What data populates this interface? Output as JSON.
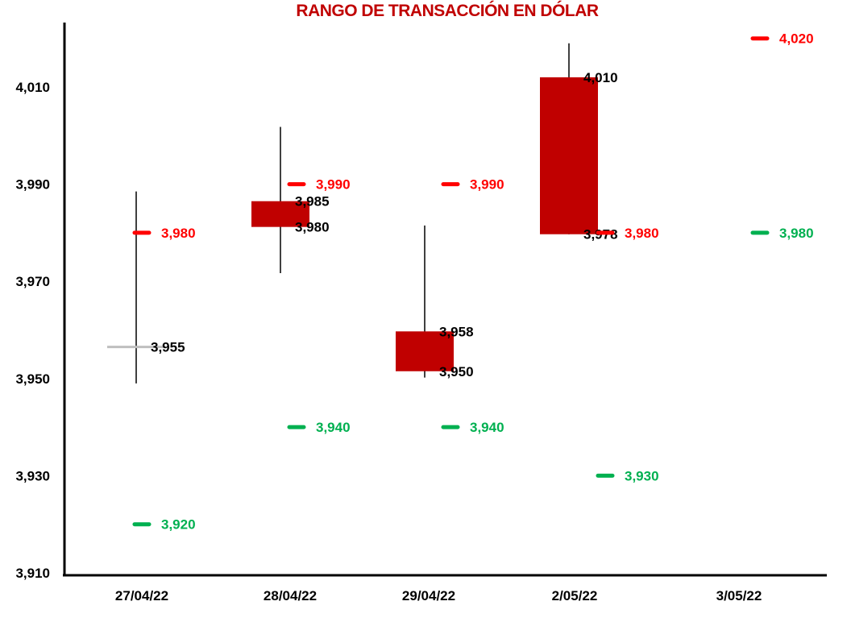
{
  "chart_data": {
    "type": "candlestick",
    "title": "RANGO DE TRANSACCIÓN EN DÓLAR",
    "xlabel": "",
    "ylabel": "",
    "ylim": [
      3910,
      4023
    ],
    "yticks": [
      3910,
      3930,
      3950,
      3970,
      3990,
      4010
    ],
    "ytick_labels": [
      "3,910",
      "3,930",
      "3,950",
      "3,970",
      "3,990",
      "4,010"
    ],
    "categories": [
      "27/04/22",
      "28/04/22",
      "29/04/22",
      "2/05/22",
      "3/05/22"
    ],
    "grid": false,
    "candles": [
      {
        "date": "27/04/22",
        "open": 3956.5,
        "close": 3956.5,
        "high": 3988.5,
        "low": 3949,
        "labels": [
          "3,955"
        ]
      },
      {
        "date": "28/04/22",
        "open": 3981.2,
        "close": 3986.5,
        "high": 4001.8,
        "low": 3971.7,
        "labels": [
          "3,985",
          "3,980"
        ]
      },
      {
        "date": "29/04/22",
        "open": 3951.5,
        "close": 3959.7,
        "high": 3981.5,
        "low": 3950.2,
        "labels": [
          "3,958",
          "3,950"
        ]
      },
      {
        "date": "2/05/22",
        "open": 3979.7,
        "close": 4012,
        "high": 4019,
        "low": 3979.7,
        "labels": [
          "4,010",
          "3,978"
        ]
      }
    ],
    "series": [
      {
        "values": [
          3980,
          3990,
          3990,
          3980,
          4020
        ],
        "labels": [
          "3,980",
          "3,990",
          "3,990",
          "3,980",
          "4,020"
        ],
        "color": "#ff0000"
      },
      {
        "values": [
          3920,
          3940,
          3940,
          3930,
          3980
        ],
        "labels": [
          "3,920",
          "3,940",
          "3,940",
          "3,930",
          "3,980"
        ],
        "color": "#00b050"
      }
    ],
    "colors": {
      "candle_body": "#c00000",
      "wick": "#404040",
      "doji": "#bfbfbf",
      "title": "#c00000"
    }
  }
}
